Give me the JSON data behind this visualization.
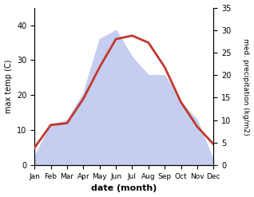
{
  "months": [
    "Jan",
    "Feb",
    "Mar",
    "Apr",
    "May",
    "Jun",
    "Jul",
    "Aug",
    "Sep",
    "Oct",
    "Nov",
    "Dec"
  ],
  "temperature": [
    5,
    11.5,
    12,
    19,
    28,
    36,
    37,
    35,
    28,
    18,
    11,
    6
  ],
  "precipitation": [
    2,
    9,
    10,
    16,
    28,
    30,
    24,
    20,
    20,
    14,
    10,
    1
  ],
  "temp_color": "#c0392b",
  "precip_fill_color": "#c5cef0",
  "temp_ylim": [
    0,
    45
  ],
  "precip_ylim": [
    0,
    35
  ],
  "temp_yticks": [
    0,
    10,
    20,
    30,
    40
  ],
  "precip_yticks": [
    0,
    5,
    10,
    15,
    20,
    25,
    30,
    35
  ],
  "xlabel": "date (month)",
  "ylabel_left": "max temp (C)",
  "ylabel_right": "med. precipitation (kg/m2)",
  "line_width": 2.0,
  "figsize": [
    3.18,
    2.47
  ],
  "dpi": 100
}
